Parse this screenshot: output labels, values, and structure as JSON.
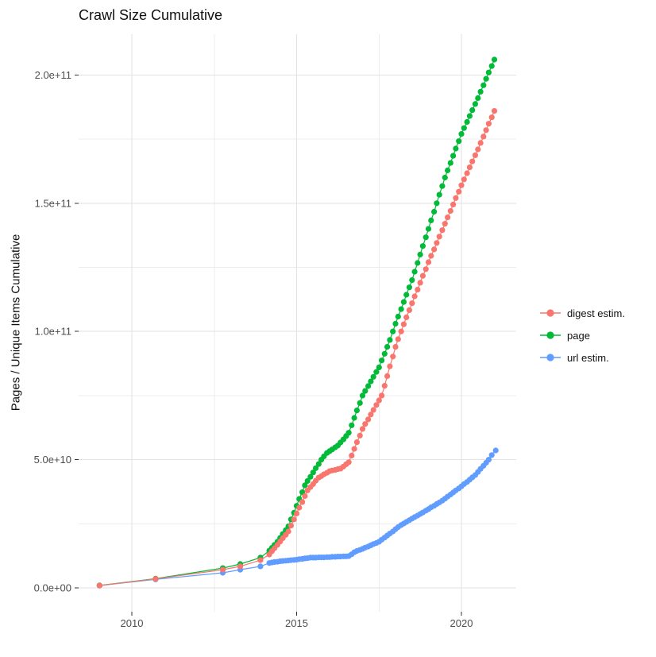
{
  "title": "Crawl Size Cumulative",
  "y_axis": {
    "label": "Pages / Unique Items Cumulative",
    "ticks": [
      "0.0e+00",
      "5.0e+10",
      "1.0e+11",
      "1.5e+11",
      "2.0e+11"
    ],
    "tick_values_billions": [
      0,
      50,
      100,
      150,
      200
    ],
    "minor_values_billions": [
      25,
      75,
      125,
      175
    ]
  },
  "x_axis": {
    "ticks": [
      "2010",
      "2015",
      "2020"
    ],
    "tick_values": [
      2010,
      2015,
      2020
    ],
    "minor_values": [
      2012.5,
      2017.5
    ]
  },
  "legend": {
    "items": [
      {
        "label": "digest estim.",
        "color": "#F8766D"
      },
      {
        "label": "page",
        "color": "#00BA38"
      },
      {
        "label": "url estim.",
        "color": "#619CFF"
      }
    ]
  },
  "colors": {
    "digest": "#F8766D",
    "page": "#00BA38",
    "url": "#619CFF",
    "grid_major": "#E2E2E2",
    "grid_minor": "#ECECEC",
    "tick_text": "#4D4D4D",
    "tick_mark": "#333333",
    "background": "#FFFFFF"
  },
  "chart_data": {
    "type": "line",
    "title": "Crawl Size Cumulative",
    "xlabel": "",
    "ylabel": "Pages / Unique Items Cumulative",
    "x_unit": "year",
    "y_unit": "items (values in billions, 1e9)",
    "xlim": [
      2008.4,
      2021.7
    ],
    "ylim_billions": [
      -10,
      216
    ],
    "grid": true,
    "legend_position": "right",
    "series": [
      {
        "name": "digest estim.",
        "color": "#F8766D",
        "points_year_billions": [
          [
            2009.02,
            0.9
          ],
          [
            2010.72,
            3.5
          ],
          [
            2012.76,
            7.1
          ],
          [
            2013.29,
            8.4
          ],
          [
            2013.9,
            10.8
          ],
          [
            2014.17,
            13
          ],
          [
            2014.25,
            14.3
          ],
          [
            2014.33,
            15.5
          ],
          [
            2014.42,
            16.8
          ],
          [
            2014.5,
            18.1
          ],
          [
            2014.58,
            19.4
          ],
          [
            2014.67,
            20.7
          ],
          [
            2014.75,
            22
          ],
          [
            2014.83,
            24.3
          ],
          [
            2014.92,
            26.7
          ],
          [
            2015,
            29
          ],
          [
            2015.08,
            31.3
          ],
          [
            2015.17,
            33.5
          ],
          [
            2015.25,
            35.8
          ],
          [
            2015.33,
            38
          ],
          [
            2015.42,
            39.3
          ],
          [
            2015.5,
            40.5
          ],
          [
            2015.58,
            41.8
          ],
          [
            2015.67,
            43
          ],
          [
            2015.75,
            43.6
          ],
          [
            2015.83,
            44.3
          ],
          [
            2015.92,
            44.9
          ],
          [
            2016,
            45.5
          ],
          [
            2016.08,
            45.8
          ],
          [
            2016.17,
            46
          ],
          [
            2016.25,
            46.3
          ],
          [
            2016.33,
            46.5
          ],
          [
            2016.42,
            47.3
          ],
          [
            2016.5,
            48.2
          ],
          [
            2016.58,
            49
          ],
          [
            2016.67,
            51.6
          ],
          [
            2016.75,
            54.2
          ],
          [
            2016.83,
            56.8
          ],
          [
            2016.92,
            59.4
          ],
          [
            2017,
            62
          ],
          [
            2017.08,
            63.9
          ],
          [
            2017.17,
            65.7
          ],
          [
            2017.25,
            67.6
          ],
          [
            2017.33,
            69.4
          ],
          [
            2017.42,
            71.3
          ],
          [
            2017.5,
            73.1
          ],
          [
            2017.58,
            75
          ],
          [
            2017.67,
            78.8
          ],
          [
            2017.75,
            82.6
          ],
          [
            2017.83,
            86.4
          ],
          [
            2017.92,
            90.2
          ],
          [
            2018,
            94
          ],
          [
            2018.08,
            97
          ],
          [
            2018.17,
            100
          ],
          [
            2018.25,
            102.8
          ],
          [
            2018.33,
            105.5
          ],
          [
            2018.42,
            108.3
          ],
          [
            2018.5,
            111
          ],
          [
            2018.58,
            113.7
          ],
          [
            2018.67,
            116.3
          ],
          [
            2018.75,
            119
          ],
          [
            2018.83,
            121.7
          ],
          [
            2018.92,
            124.3
          ],
          [
            2019,
            127
          ],
          [
            2019.08,
            129.5
          ],
          [
            2019.17,
            132
          ],
          [
            2019.25,
            134.5
          ],
          [
            2019.33,
            137
          ],
          [
            2019.42,
            139.5
          ],
          [
            2019.5,
            142
          ],
          [
            2019.58,
            144.5
          ],
          [
            2019.67,
            147
          ],
          [
            2019.75,
            149.5
          ],
          [
            2019.83,
            152
          ],
          [
            2019.92,
            154.5
          ],
          [
            2020,
            157
          ],
          [
            2020.08,
            159.3
          ],
          [
            2020.17,
            161.7
          ],
          [
            2020.25,
            164
          ],
          [
            2020.33,
            166.3
          ],
          [
            2020.42,
            168.7
          ],
          [
            2020.5,
            171
          ],
          [
            2020.58,
            173.5
          ],
          [
            2020.67,
            176
          ],
          [
            2020.75,
            178.5
          ],
          [
            2020.83,
            181
          ],
          [
            2020.92,
            183.5
          ],
          [
            2021,
            186
          ]
        ]
      },
      {
        "name": "page",
        "color": "#00BA38",
        "points_year_billions": [
          [
            2009.02,
            0.95
          ],
          [
            2010.72,
            3.6
          ],
          [
            2012.76,
            7.7
          ],
          [
            2013.29,
            9.3
          ],
          [
            2013.9,
            11.8
          ],
          [
            2014.17,
            14.5
          ],
          [
            2014.25,
            15.6
          ],
          [
            2014.33,
            16.8
          ],
          [
            2014.42,
            18
          ],
          [
            2014.5,
            19.5
          ],
          [
            2014.58,
            21
          ],
          [
            2014.67,
            22.5
          ],
          [
            2014.75,
            24
          ],
          [
            2014.83,
            26.7
          ],
          [
            2014.92,
            29.3
          ],
          [
            2015,
            32
          ],
          [
            2015.08,
            34.7
          ],
          [
            2015.17,
            37.3
          ],
          [
            2015.25,
            40
          ],
          [
            2015.33,
            41.7
          ],
          [
            2015.42,
            43.3
          ],
          [
            2015.5,
            45
          ],
          [
            2015.58,
            46.7
          ],
          [
            2015.67,
            48.3
          ],
          [
            2015.75,
            50
          ],
          [
            2015.83,
            51.3
          ],
          [
            2015.92,
            52.6
          ],
          [
            2016,
            53.3
          ],
          [
            2016.08,
            54
          ],
          [
            2016.17,
            54.8
          ],
          [
            2016.25,
            55.5
          ],
          [
            2016.33,
            56.7
          ],
          [
            2016.42,
            57.9
          ],
          [
            2016.5,
            59.2
          ],
          [
            2016.58,
            60.5
          ],
          [
            2016.67,
            63.4
          ],
          [
            2016.75,
            66.3
          ],
          [
            2016.83,
            69.2
          ],
          [
            2016.92,
            72.1
          ],
          [
            2017,
            75
          ],
          [
            2017.08,
            76.8
          ],
          [
            2017.17,
            78.7
          ],
          [
            2017.25,
            80.5
          ],
          [
            2017.33,
            82.3
          ],
          [
            2017.42,
            84.2
          ],
          [
            2017.5,
            86
          ],
          [
            2017.58,
            88.7
          ],
          [
            2017.67,
            91.3
          ],
          [
            2017.75,
            94
          ],
          [
            2017.83,
            96.7
          ],
          [
            2017.92,
            100
          ],
          [
            2018,
            103
          ],
          [
            2018.08,
            105.8
          ],
          [
            2018.17,
            108.7
          ],
          [
            2018.25,
            111.5
          ],
          [
            2018.33,
            114.3
          ],
          [
            2018.42,
            117.2
          ],
          [
            2018.5,
            120
          ],
          [
            2018.58,
            123.3
          ],
          [
            2018.67,
            126.7
          ],
          [
            2018.75,
            130
          ],
          [
            2018.83,
            133.3
          ],
          [
            2018.92,
            136.7
          ],
          [
            2019,
            140
          ],
          [
            2019.08,
            143.3
          ],
          [
            2019.17,
            146.7
          ],
          [
            2019.25,
            150
          ],
          [
            2019.33,
            153.3
          ],
          [
            2019.42,
            156.7
          ],
          [
            2019.5,
            160
          ],
          [
            2019.58,
            162.8
          ],
          [
            2019.67,
            165.7
          ],
          [
            2019.75,
            168.5
          ],
          [
            2019.83,
            171.3
          ],
          [
            2019.92,
            174.2
          ],
          [
            2020,
            177
          ],
          [
            2020.08,
            179.3
          ],
          [
            2020.17,
            181.7
          ],
          [
            2020.25,
            184
          ],
          [
            2020.33,
            186.3
          ],
          [
            2020.42,
            188.7
          ],
          [
            2020.5,
            191
          ],
          [
            2020.58,
            193.5
          ],
          [
            2020.67,
            196
          ],
          [
            2020.75,
            198.5
          ],
          [
            2020.83,
            201
          ],
          [
            2020.92,
            203.5
          ],
          [
            2021,
            206
          ]
        ]
      },
      {
        "name": "url estim.",
        "color": "#619CFF",
        "points_year_billions": [
          [
            2009.02,
            0.9
          ],
          [
            2010.72,
            3.3
          ],
          [
            2012.76,
            5.9
          ],
          [
            2013.29,
            7.1
          ],
          [
            2013.9,
            8.4
          ],
          [
            2014.17,
            9.7
          ],
          [
            2014.25,
            9.9
          ],
          [
            2014.33,
            10.1
          ],
          [
            2014.42,
            10.2
          ],
          [
            2014.5,
            10.4
          ],
          [
            2014.58,
            10.5
          ],
          [
            2014.67,
            10.6
          ],
          [
            2014.75,
            10.7
          ],
          [
            2014.83,
            10.8
          ],
          [
            2014.92,
            10.9
          ],
          [
            2015,
            11
          ],
          [
            2015.08,
            11.2
          ],
          [
            2015.17,
            11.3
          ],
          [
            2015.25,
            11.5
          ],
          [
            2015.33,
            11.6
          ],
          [
            2015.42,
            11.8
          ],
          [
            2015.5,
            11.8
          ],
          [
            2015.58,
            11.8
          ],
          [
            2015.67,
            11.9
          ],
          [
            2015.75,
            11.9
          ],
          [
            2015.83,
            11.9
          ],
          [
            2015.92,
            12
          ],
          [
            2016,
            12
          ],
          [
            2016.08,
            12.1
          ],
          [
            2016.17,
            12.1
          ],
          [
            2016.25,
            12.2
          ],
          [
            2016.33,
            12.2
          ],
          [
            2016.42,
            12.3
          ],
          [
            2016.5,
            12.3
          ],
          [
            2016.58,
            12.4
          ],
          [
            2016.67,
            13.1
          ],
          [
            2016.75,
            13.9
          ],
          [
            2016.83,
            14.4
          ],
          [
            2016.92,
            14.8
          ],
          [
            2017,
            15.2
          ],
          [
            2017.08,
            15.7
          ],
          [
            2017.17,
            16.1
          ],
          [
            2017.25,
            16.6
          ],
          [
            2017.33,
            17.1
          ],
          [
            2017.42,
            17.5
          ],
          [
            2017.5,
            18
          ],
          [
            2017.58,
            18.8
          ],
          [
            2017.67,
            19.6
          ],
          [
            2017.75,
            20.4
          ],
          [
            2017.83,
            21.2
          ],
          [
            2017.92,
            22
          ],
          [
            2018,
            22.9
          ],
          [
            2018.08,
            23.7
          ],
          [
            2018.17,
            24.5
          ],
          [
            2018.25,
            25.1
          ],
          [
            2018.33,
            25.7
          ],
          [
            2018.42,
            26.4
          ],
          [
            2018.5,
            27
          ],
          [
            2018.58,
            27.6
          ],
          [
            2018.67,
            28.2
          ],
          [
            2018.75,
            28.8
          ],
          [
            2018.83,
            29.4
          ],
          [
            2018.92,
            30.1
          ],
          [
            2019,
            30.7
          ],
          [
            2019.08,
            31.4
          ],
          [
            2019.17,
            32
          ],
          [
            2019.25,
            32.7
          ],
          [
            2019.33,
            33.3
          ],
          [
            2019.42,
            34
          ],
          [
            2019.5,
            34.8
          ],
          [
            2019.58,
            35.6
          ],
          [
            2019.67,
            36.4
          ],
          [
            2019.75,
            37.2
          ],
          [
            2019.83,
            38
          ],
          [
            2019.92,
            38.8
          ],
          [
            2020,
            39.6
          ],
          [
            2020.08,
            40.5
          ],
          [
            2020.17,
            41.3
          ],
          [
            2020.25,
            42.2
          ],
          [
            2020.33,
            43.1
          ],
          [
            2020.42,
            44
          ],
          [
            2020.5,
            45.2
          ],
          [
            2020.58,
            46.4
          ],
          [
            2020.67,
            47.6
          ],
          [
            2020.75,
            48.8
          ],
          [
            2020.83,
            50
          ],
          [
            2020.92,
            51.8
          ],
          [
            2021.04,
            53.6
          ]
        ]
      }
    ]
  }
}
